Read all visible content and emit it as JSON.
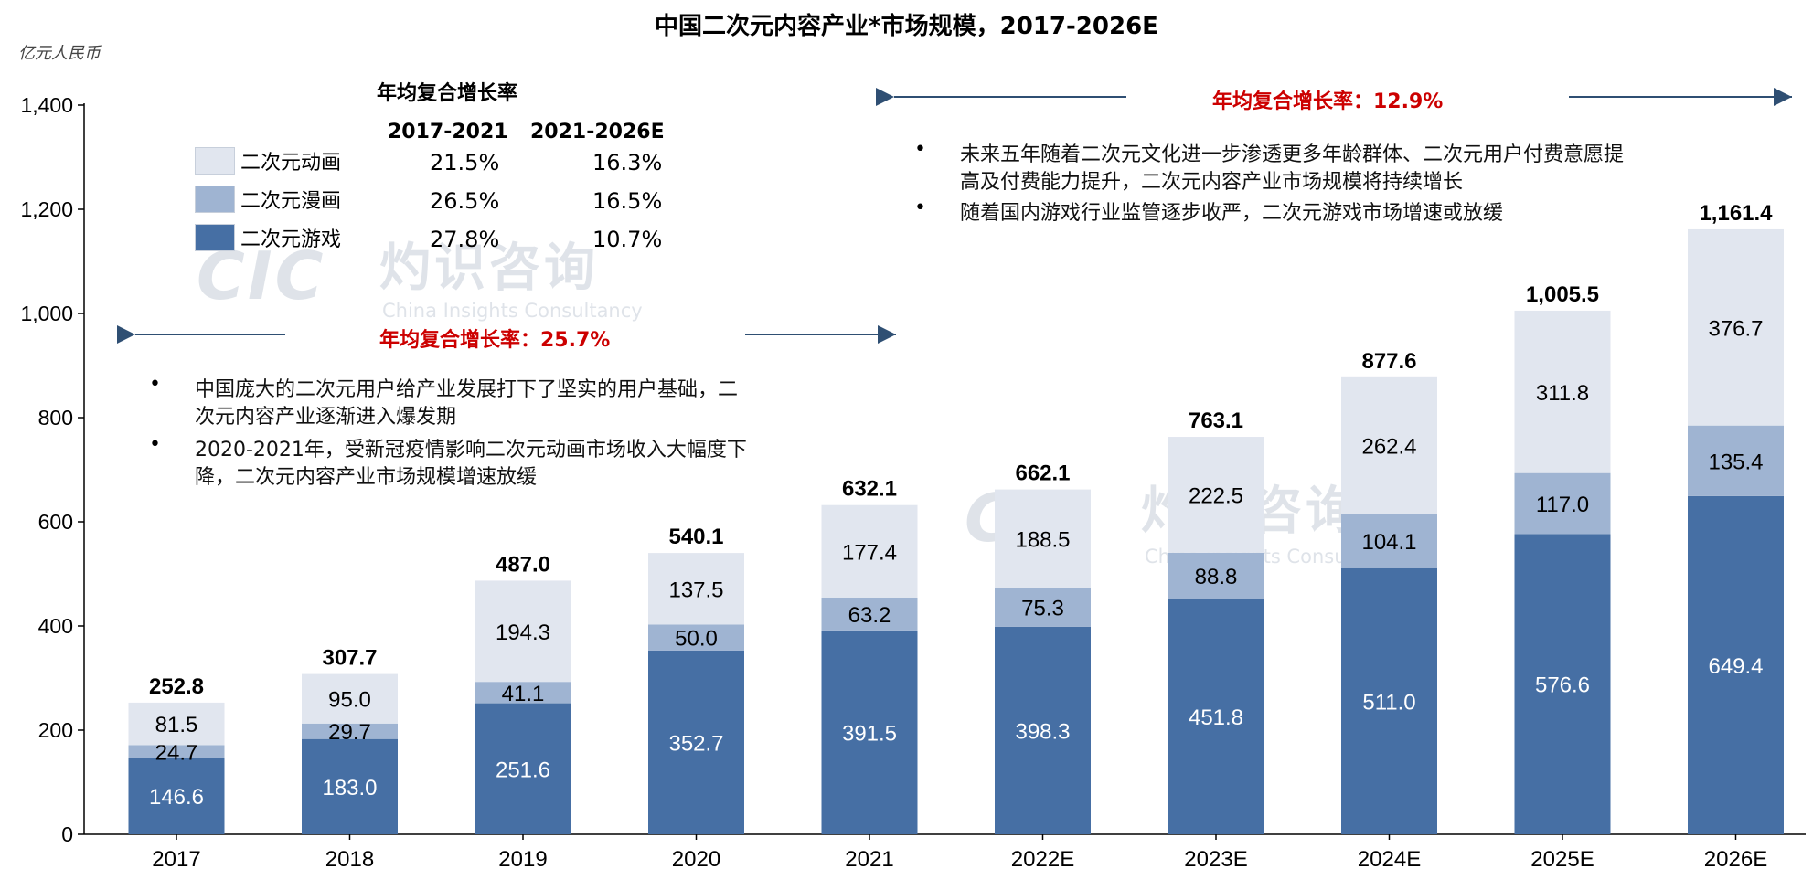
{
  "title": "中国二次元内容产业*市场规模，2017-2026E",
  "unit": "亿元人民币",
  "cagr_table": {
    "title": "年均复合增长率",
    "periods": [
      "2017-2021",
      "2021-2026E"
    ],
    "rows": [
      {
        "label": "二次元动画",
        "values": [
          "21.5%",
          "16.3%"
        ],
        "color": "#e1e6ef"
      },
      {
        "label": "二次元漫画",
        "values": [
          "26.5%",
          "16.5%"
        ],
        "color": "#9fb4d2"
      },
      {
        "label": "二次元游戏",
        "values": [
          "27.8%",
          "10.7%"
        ],
        "color": "#466fa4"
      }
    ]
  },
  "cagr_left": "年均复合增长率：25.7%",
  "cagr_right": "年均复合增长率：12.9%",
  "notes_left": [
    [
      "中国庞大的二次元用户给产业发展打下了坚实的用户基础，二",
      "次元内容产业逐渐进入爆发期"
    ],
    [
      "2020-2021年，受新冠疫情影响二次元动画市场收入大幅度下",
      "降，二次元内容产业市场规模增速放缓"
    ]
  ],
  "notes_right": [
    [
      "未来五年随着二次元文化进一步渗透更多年龄群体、二次元用户付费意愿提",
      "高及付费能力提升，二次元内容产业市场规模将持续增长"
    ],
    [
      "随着国内游戏行业监管逐步收严，二次元游戏市场增速或放缓"
    ]
  ],
  "watermark": {
    "cn": "灼识咨询",
    "en": "China Insights Consultancy",
    "logo": "CIC"
  },
  "chart_data": {
    "type": "bar",
    "stacked": true,
    "categories": [
      "2017",
      "2018",
      "2019",
      "2020",
      "2021",
      "2022E",
      "2023E",
      "2024E",
      "2025E",
      "2026E"
    ],
    "series": [
      {
        "name": "二次元游戏",
        "values": [
          146.6,
          183.0,
          251.6,
          352.7,
          391.5,
          398.3,
          451.8,
          511.0,
          576.6,
          649.4
        ],
        "color": "#466fa4"
      },
      {
        "name": "二次元漫画",
        "values": [
          24.7,
          29.7,
          41.1,
          50.0,
          63.2,
          75.3,
          88.8,
          104.1,
          117.0,
          135.4
        ],
        "color": "#9fb4d2"
      },
      {
        "name": "二次元动画",
        "values": [
          81.5,
          95.0,
          194.3,
          137.5,
          177.4,
          188.5,
          222.5,
          262.4,
          311.8,
          376.7
        ],
        "color": "#e1e6ef"
      }
    ],
    "value_labels": [
      [
        "146.6",
        "183.0",
        "251.6",
        "352.7",
        "391.5",
        "398.3",
        "451.8",
        "511.0",
        "576.6",
        "649.4"
      ],
      [
        "24.7",
        "29.7",
        "41.1",
        "50.0",
        "63.2",
        "75.3",
        "88.8",
        "104.1",
        "117.0",
        "135.4"
      ],
      [
        "81.5",
        "95.0",
        "194.3",
        "137.5",
        "177.4",
        "188.5",
        "222.5",
        "262.4",
        "311.8",
        "376.7"
      ]
    ],
    "totals": [
      "252.8",
      "307.7",
      "487.0",
      "540.1",
      "632.1",
      "662.1",
      "763.1",
      "877.6",
      "1,005.5",
      "1,161.4"
    ],
    "yticks": [
      "0",
      "200",
      "400",
      "600",
      "800",
      "1,000",
      "1,200",
      "1,400"
    ],
    "ylim": [
      0,
      1400
    ],
    "grid": false,
    "legend": "top-left"
  }
}
